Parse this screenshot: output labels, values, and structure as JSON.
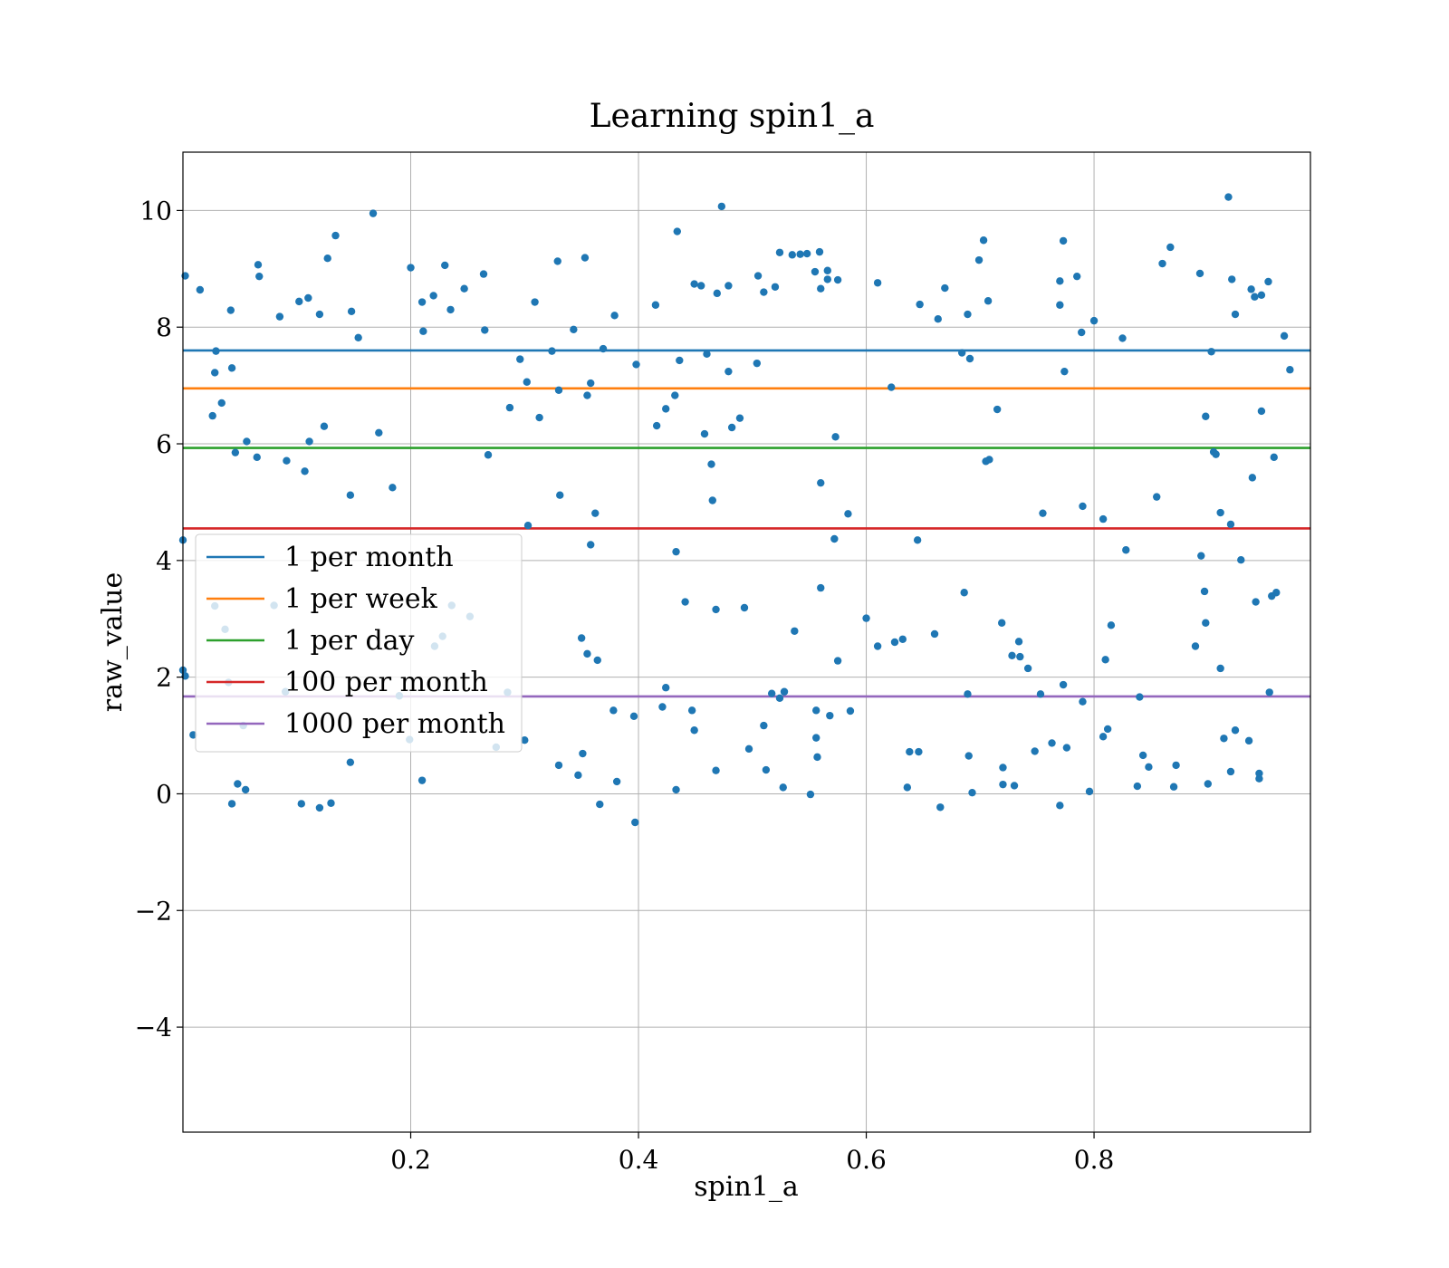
{
  "chart_data": {
    "type": "scatter",
    "title": "Learning spin1_a",
    "xlabel": "spin1_a",
    "ylabel": "raw_value",
    "xlim": [
      0.0,
      0.99
    ],
    "ylim": [
      -5.8,
      11.0
    ],
    "x_ticks": [
      0.2,
      0.4,
      0.6,
      0.8
    ],
    "x_tick_labels": [
      "0.2",
      "0.4",
      "0.6",
      "0.8"
    ],
    "y_ticks": [
      -4,
      -2,
      0,
      2,
      4,
      6,
      8,
      10
    ],
    "y_tick_labels": [
      "−4",
      "−2",
      "0",
      "2",
      "4",
      "6",
      "8",
      "10"
    ],
    "grid": true,
    "legend_position": "center-left",
    "point_color": "#1f77b4",
    "hlines": [
      {
        "name": "1 per month",
        "y": 7.6,
        "color": "#1f77b4"
      },
      {
        "name": "1 per week",
        "y": 6.95,
        "color": "#ff7f0e"
      },
      {
        "name": "1 per day",
        "y": 5.93,
        "color": "#2ca02c"
      },
      {
        "name": "100 per month",
        "y": 4.55,
        "color": "#d62728"
      },
      {
        "name": "1000 per month",
        "y": 1.67,
        "color": "#9467bd"
      }
    ],
    "points": [
      [
        0.002,
        8.88
      ],
      [
        0.015,
        8.64
      ],
      [
        0.066,
        9.07
      ],
      [
        0.067,
        8.87
      ],
      [
        0.085,
        8.18
      ],
      [
        0.102,
        8.44
      ],
      [
        0.11,
        8.5
      ],
      [
        0.12,
        8.22
      ],
      [
        0.127,
        9.18
      ],
      [
        0.134,
        9.57
      ],
      [
        0.148,
        8.27
      ],
      [
        0.167,
        9.95
      ],
      [
        0.154,
        7.82
      ],
      [
        0.042,
        8.29
      ],
      [
        0.028,
        7.22
      ],
      [
        0.029,
        7.59
      ],
      [
        0.043,
        7.3
      ],
      [
        0.034,
        6.7
      ],
      [
        0.026,
        6.48
      ],
      [
        0.056,
        6.04
      ],
      [
        0.046,
        5.85
      ],
      [
        0.065,
        5.77
      ],
      [
        0.091,
        5.71
      ],
      [
        0.107,
        5.53
      ],
      [
        0.111,
        6.04
      ],
      [
        0.124,
        6.3
      ],
      [
        0.147,
        5.12
      ],
      [
        0.172,
        6.19
      ],
      [
        0.184,
        5.25
      ],
      [
        0.2,
        9.02
      ],
      [
        0.21,
        8.43
      ],
      [
        0.22,
        8.54
      ],
      [
        0.23,
        9.06
      ],
      [
        0.235,
        8.3
      ],
      [
        0.247,
        8.66
      ],
      [
        0.264,
        8.91
      ],
      [
        0.265,
        7.95
      ],
      [
        0.211,
        7.93
      ],
      [
        0.296,
        7.45
      ],
      [
        0.302,
        7.06
      ],
      [
        0.309,
        8.43
      ],
      [
        0.313,
        6.45
      ],
      [
        0.287,
        6.62
      ],
      [
        0.324,
        7.59
      ],
      [
        0.329,
        9.13
      ],
      [
        0.33,
        6.92
      ],
      [
        0.331,
        5.12
      ],
      [
        0.343,
        7.96
      ],
      [
        0.353,
        9.19
      ],
      [
        0.355,
        6.83
      ],
      [
        0.358,
        7.04
      ],
      [
        0.362,
        4.81
      ],
      [
        0.358,
        4.27
      ],
      [
        0.369,
        7.63
      ],
      [
        0.379,
        8.2
      ],
      [
        0.303,
        4.6
      ],
      [
        0.268,
        5.81
      ],
      [
        0.398,
        7.36
      ],
      [
        0.415,
        8.38
      ],
      [
        0.416,
        6.31
      ],
      [
        0.424,
        6.6
      ],
      [
        0.432,
        6.83
      ],
      [
        0.434,
        9.64
      ],
      [
        0.436,
        7.43
      ],
      [
        0.449,
        8.74
      ],
      [
        0.455,
        8.71
      ],
      [
        0.46,
        7.54
      ],
      [
        0.458,
        6.17
      ],
      [
        0.464,
        5.65
      ],
      [
        0.465,
        5.03
      ],
      [
        0.469,
        8.58
      ],
      [
        0.473,
        10.07
      ],
      [
        0.479,
        8.71
      ],
      [
        0.479,
        7.24
      ],
      [
        0.482,
        6.28
      ],
      [
        0.489,
        6.44
      ],
      [
        0.505,
        8.88
      ],
      [
        0.51,
        8.6
      ],
      [
        0.52,
        8.69
      ],
      [
        0.524,
        9.28
      ],
      [
        0.535,
        9.24
      ],
      [
        0.542,
        9.25
      ],
      [
        0.548,
        9.26
      ],
      [
        0.555,
        8.95
      ],
      [
        0.56,
        8.66
      ],
      [
        0.559,
        9.29
      ],
      [
        0.566,
        8.97
      ],
      [
        0.566,
        8.82
      ],
      [
        0.575,
        8.81
      ],
      [
        0.504,
        7.38
      ],
      [
        0.573,
        6.12
      ],
      [
        0.56,
        5.33
      ],
      [
        0.584,
        4.8
      ],
      [
        0.572,
        4.37
      ],
      [
        0.468,
        3.16
      ],
      [
        0.493,
        3.19
      ],
      [
        0.441,
        3.29
      ],
      [
        0.433,
        4.15
      ],
      [
        0.647,
        8.39
      ],
      [
        0.663,
        8.14
      ],
      [
        0.669,
        8.67
      ],
      [
        0.689,
        8.22
      ],
      [
        0.699,
        9.15
      ],
      [
        0.703,
        9.49
      ],
      [
        0.707,
        8.45
      ],
      [
        0.684,
        7.56
      ],
      [
        0.691,
        7.46
      ],
      [
        0.715,
        6.59
      ],
      [
        0.705,
        5.7
      ],
      [
        0.708,
        5.73
      ],
      [
        0.61,
        8.76
      ],
      [
        0.622,
        6.97
      ],
      [
        0.645,
        4.35
      ],
      [
        0.773,
        9.48
      ],
      [
        0.77,
        8.79
      ],
      [
        0.77,
        8.38
      ],
      [
        0.785,
        8.87
      ],
      [
        0.789,
        7.91
      ],
      [
        0.8,
        8.11
      ],
      [
        0.774,
        7.24
      ],
      [
        0.825,
        7.81
      ],
      [
        0.79,
        4.93
      ],
      [
        0.755,
        4.81
      ],
      [
        0.808,
        4.71
      ],
      [
        0.828,
        4.18
      ],
      [
        0.855,
        5.09
      ],
      [
        0.86,
        9.09
      ],
      [
        0.867,
        9.37
      ],
      [
        0.893,
        8.92
      ],
      [
        0.898,
        6.47
      ],
      [
        0.903,
        7.58
      ],
      [
        0.905,
        5.86
      ],
      [
        0.907,
        5.82
      ],
      [
        0.911,
        4.82
      ],
      [
        0.918,
        10.23
      ],
      [
        0.921,
        8.82
      ],
      [
        0.924,
        8.22
      ],
      [
        0.938,
        8.65
      ],
      [
        0.941,
        8.52
      ],
      [
        0.947,
        8.55
      ],
      [
        0.953,
        8.78
      ],
      [
        0.947,
        6.56
      ],
      [
        0.939,
        5.42
      ],
      [
        0.958,
        5.77
      ],
      [
        0.967,
        7.85
      ],
      [
        0.972,
        7.27
      ],
      [
        0.92,
        4.62
      ],
      [
        0.929,
        4.01
      ],
      [
        0.894,
        4.08
      ],
      [
        0.0,
        4.35
      ],
      [
        0.0,
        2.12
      ],
      [
        0.002,
        2.02
      ],
      [
        0.009,
        1.01
      ],
      [
        0.028,
        3.22
      ],
      [
        0.037,
        2.82
      ],
      [
        0.04,
        1.91
      ],
      [
        0.053,
        1.17
      ],
      [
        0.048,
        0.17
      ],
      [
        0.055,
        0.07
      ],
      [
        0.043,
        -0.17
      ],
      [
        0.08,
        3.23
      ],
      [
        0.09,
        1.75
      ],
      [
        0.13,
        -0.16
      ],
      [
        0.12,
        -0.24
      ],
      [
        0.104,
        -0.17
      ],
      [
        0.147,
        0.54
      ],
      [
        0.19,
        1.68
      ],
      [
        0.199,
        0.93
      ],
      [
        0.21,
        0.23
      ],
      [
        0.236,
        3.23
      ],
      [
        0.228,
        2.7
      ],
      [
        0.221,
        2.53
      ],
      [
        0.252,
        3.04
      ],
      [
        0.275,
        0.8
      ],
      [
        0.285,
        1.74
      ],
      [
        0.3,
        0.92
      ],
      [
        0.33,
        0.49
      ],
      [
        0.347,
        0.32
      ],
      [
        0.351,
        0.69
      ],
      [
        0.355,
        2.4
      ],
      [
        0.364,
        2.29
      ],
      [
        0.35,
        2.67
      ],
      [
        0.378,
        1.43
      ],
      [
        0.396,
        1.33
      ],
      [
        0.424,
        1.82
      ],
      [
        0.421,
        1.49
      ],
      [
        0.447,
        1.43
      ],
      [
        0.449,
        1.09
      ],
      [
        0.468,
        0.4
      ],
      [
        0.433,
        0.07
      ],
      [
        0.397,
        -0.49
      ],
      [
        0.381,
        0.21
      ],
      [
        0.366,
        -0.18
      ],
      [
        0.497,
        0.77
      ],
      [
        0.51,
        1.17
      ],
      [
        0.517,
        1.72
      ],
      [
        0.524,
        1.64
      ],
      [
        0.528,
        1.75
      ],
      [
        0.556,
        1.43
      ],
      [
        0.568,
        1.34
      ],
      [
        0.586,
        1.42
      ],
      [
        0.556,
        0.96
      ],
      [
        0.557,
        0.63
      ],
      [
        0.56,
        3.53
      ],
      [
        0.575,
        2.28
      ],
      [
        0.551,
        -0.01
      ],
      [
        0.527,
        0.11
      ],
      [
        0.512,
        0.41
      ],
      [
        0.537,
        2.79
      ],
      [
        0.6,
        3.01
      ],
      [
        0.61,
        2.53
      ],
      [
        0.625,
        2.6
      ],
      [
        0.632,
        2.65
      ],
      [
        0.66,
        2.74
      ],
      [
        0.686,
        3.45
      ],
      [
        0.689,
        1.71
      ],
      [
        0.69,
        0.65
      ],
      [
        0.693,
        0.02
      ],
      [
        0.665,
        -0.23
      ],
      [
        0.636,
        0.11
      ],
      [
        0.638,
        0.72
      ],
      [
        0.646,
        0.72
      ],
      [
        0.719,
        2.93
      ],
      [
        0.728,
        2.37
      ],
      [
        0.735,
        2.35
      ],
      [
        0.734,
        2.61
      ],
      [
        0.742,
        2.15
      ],
      [
        0.753,
        1.71
      ],
      [
        0.773,
        1.87
      ],
      [
        0.79,
        1.58
      ],
      [
        0.812,
        1.11
      ],
      [
        0.808,
        0.98
      ],
      [
        0.81,
        2.3
      ],
      [
        0.815,
        2.89
      ],
      [
        0.776,
        0.79
      ],
      [
        0.763,
        0.87
      ],
      [
        0.748,
        0.73
      ],
      [
        0.72,
        0.45
      ],
      [
        0.72,
        0.16
      ],
      [
        0.73,
        0.14
      ],
      [
        0.796,
        0.04
      ],
      [
        0.77,
        -0.2
      ],
      [
        0.84,
        1.66
      ],
      [
        0.843,
        0.66
      ],
      [
        0.848,
        0.46
      ],
      [
        0.838,
        0.13
      ],
      [
        0.872,
        0.49
      ],
      [
        0.889,
        2.53
      ],
      [
        0.898,
        2.93
      ],
      [
        0.897,
        3.47
      ],
      [
        0.9,
        0.17
      ],
      [
        0.911,
        2.15
      ],
      [
        0.914,
        0.95
      ],
      [
        0.92,
        0.38
      ],
      [
        0.924,
        1.09
      ],
      [
        0.936,
        0.91
      ],
      [
        0.942,
        3.29
      ],
      [
        0.945,
        0.35
      ],
      [
        0.945,
        0.26
      ],
      [
        0.954,
        1.74
      ],
      [
        0.956,
        3.39
      ],
      [
        0.96,
        3.45
      ],
      [
        0.87,
        0.12
      ]
    ]
  }
}
